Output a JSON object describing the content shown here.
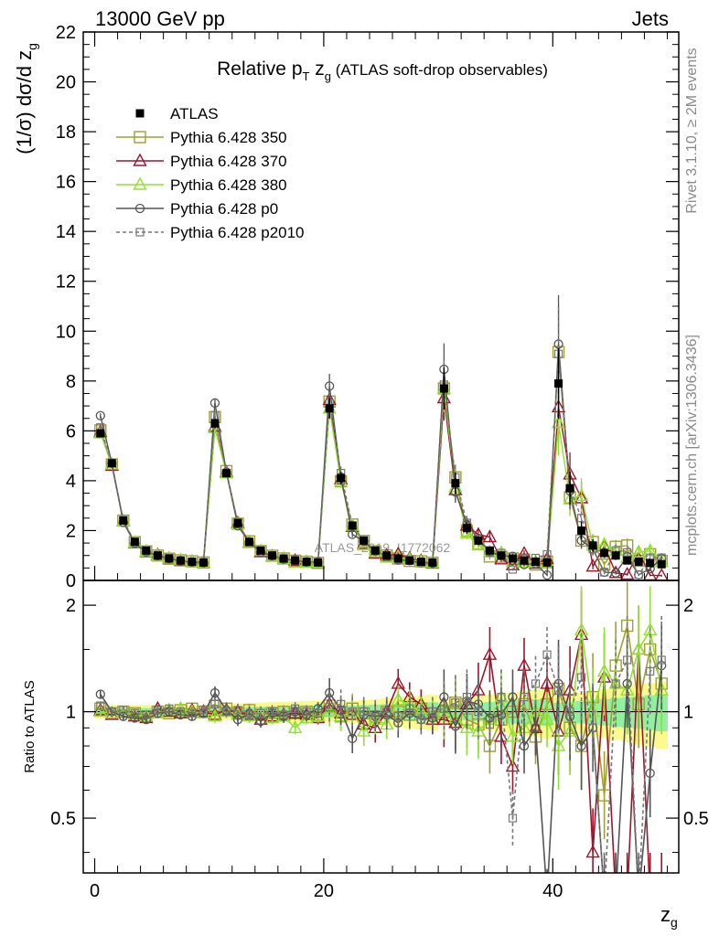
{
  "header": {
    "left": "13000 GeV pp",
    "right": "Jets"
  },
  "side_labels": {
    "rivet": "Rivet 3.1.10, ≥ 2M events",
    "mcplots": "mcplots.cern.ch [arXiv:1306.3436]"
  },
  "watermark": "ATLAS_2019_I1772062",
  "chart_data": {
    "type": "line",
    "title": {
      "prefix": "Relative p",
      "sub": "T",
      "mid": " z",
      "sub2": "g",
      "suffix": " (ATLAS soft-drop observables)"
    },
    "ylabel": {
      "main": "(1/σ) dσ/d z",
      "sub": "g"
    },
    "xlabel": {
      "main": "z",
      "sub": "g"
    },
    "ratio_ylabel": "Ratio to ATLAS",
    "xlim": [
      -1,
      51
    ],
    "ylim": [
      0,
      22
    ],
    "ratio_ylim": [
      0.35,
      2.35
    ],
    "ratio_log": true,
    "xticks": [
      "0",
      "20",
      "40"
    ],
    "xtick_values": [
      0,
      20,
      40
    ],
    "yticks": [
      "0",
      "2",
      "4",
      "6",
      "8",
      "10",
      "12",
      "14",
      "16",
      "18",
      "20",
      "22"
    ],
    "ratio_ticks": [
      "0.5",
      "1",
      "2"
    ],
    "ratio_tick_values": [
      0.5,
      1,
      2
    ],
    "legend_position": "top-left",
    "colors": {
      "atlas": "#000000",
      "p350": "#a0a033",
      "p370": "#a0142a",
      "p380": "#90e030",
      "p0": "#555555",
      "p2010": "#777777",
      "band_stat": "#90f0a0",
      "band_syst": "#fafa90"
    },
    "x": [
      0.5,
      1.5,
      2.5,
      3.5,
      4.5,
      5.5,
      6.5,
      7.5,
      8.5,
      9.5,
      10.5,
      11.5,
      12.5,
      13.5,
      14.5,
      15.5,
      16.5,
      17.5,
      18.5,
      19.5,
      20.5,
      21.5,
      22.5,
      23.5,
      24.5,
      25.5,
      26.5,
      27.5,
      28.5,
      29.5,
      30.5,
      31.5,
      32.5,
      33.5,
      34.5,
      35.5,
      36.5,
      37.5,
      38.5,
      39.5,
      40.5,
      41.5,
      42.5,
      43.5,
      44.5,
      45.5,
      46.5,
      47.5,
      48.5,
      49.5
    ],
    "atlas": [
      5.9,
      4.7,
      2.4,
      1.55,
      1.2,
      1.0,
      0.88,
      0.8,
      0.75,
      0.72,
      6.3,
      4.3,
      2.3,
      1.55,
      1.2,
      1.0,
      0.88,
      0.8,
      0.75,
      0.72,
      6.9,
      4.1,
      2.2,
      1.6,
      1.2,
      1.0,
      0.88,
      0.8,
      0.75,
      0.72,
      7.7,
      3.9,
      2.1,
      1.6,
      1.2,
      1.0,
      0.88,
      0.8,
      0.75,
      0.72,
      7.9,
      3.7,
      2.0,
      1.4,
      1.1,
      1.0,
      0.8,
      0.75,
      0.7,
      0.65
    ],
    "series": [
      {
        "name": "Pythia 6.428 350",
        "key": "p350",
        "marker": "square",
        "ratio": [
          1.02,
          0.99,
          1.0,
          0.99,
          0.97,
          1.0,
          0.99,
          1.01,
          1.02,
          1.0,
          1.04,
          1.02,
          0.99,
          1.01,
          0.98,
          0.99,
          1.0,
          0.99,
          1.0,
          0.98,
          1.04,
          0.97,
          1.02,
          0.99,
          0.97,
          1.0,
          1.0,
          0.98,
          1.02,
          0.99,
          1.0,
          1.06,
          0.95,
          0.92,
          0.8,
          0.95,
          1.0,
          1.05,
          0.85,
          1.05,
          1.16,
          0.9,
          0.8,
          1.1,
          0.58,
          1.35,
          1.75,
          1.05,
          1.5,
          1.2
        ]
      },
      {
        "name": "Pythia 6.428 370",
        "key": "p370",
        "marker": "triangle",
        "ratio": [
          1.01,
          0.98,
          0.99,
          0.97,
          0.96,
          1.02,
          1.0,
          0.99,
          1.01,
          1.0,
          0.98,
          1.01,
          1.0,
          0.98,
          0.95,
          0.97,
          0.98,
          0.99,
          0.98,
          0.96,
          1.05,
          0.99,
          0.98,
          0.92,
          0.9,
          1.0,
          1.2,
          1.1,
          1.05,
          0.95,
          0.95,
          0.93,
          1.05,
          1.15,
          1.45,
          0.85,
          0.7,
          1.35,
          0.9,
          1.2,
          0.88,
          1.15,
          1.65,
          0.4,
          1.25,
          0.3,
          0.3,
          1.5,
          0.3,
          0.3
        ]
      },
      {
        "name": "Pythia 6.428 380",
        "key": "p380",
        "marker": "triangle",
        "ratio": [
          1.0,
          0.99,
          0.99,
          0.98,
          0.97,
          0.99,
          1.01,
          1.02,
          1.0,
          0.99,
          0.97,
          1.0,
          0.98,
          0.97,
          0.99,
          0.96,
          0.97,
          0.9,
          0.96,
          0.97,
          1.0,
          0.97,
          1.0,
          0.88,
          0.95,
          0.92,
          1.08,
          1.05,
          1.0,
          0.98,
          1.0,
          0.96,
          0.9,
          0.88,
          0.95,
          1.1,
          0.85,
          0.9,
          1.0,
          0.95,
          0.8,
          0.88,
          1.7,
          1.0,
          1.3,
          1.2,
          1.15,
          1.5,
          1.7,
          1.15
        ]
      },
      {
        "name": "Pythia 6.428 p0",
        "key": "p0",
        "marker": "circle",
        "ratio": [
          1.12,
          1.0,
          0.97,
          0.96,
          0.95,
          0.99,
          1.0,
          0.98,
          0.97,
          0.99,
          1.13,
          1.01,
          0.95,
          0.99,
          0.94,
          0.99,
          0.97,
          1.0,
          0.98,
          1.02,
          1.13,
          1.01,
          0.84,
          0.98,
          0.97,
          0.98,
          0.93,
          0.99,
          0.95,
          0.96,
          1.1,
          0.91,
          1.07,
          1.05,
          0.96,
          0.98,
          1.1,
          0.8,
          0.9,
          0.3,
          1.2,
          0.97,
          0.8,
          0.9,
          0.3,
          0.3,
          1.2,
          0.3,
          0.67,
          1.35
        ]
      },
      {
        "name": "Pythia 6.428 p2010",
        "key": "p2010",
        "marker": "square-open-dashed",
        "ratio": [
          1.04,
          1.0,
          1.01,
          0.99,
          0.98,
          1.01,
          1.02,
          1.0,
          0.99,
          1.01,
          1.05,
          1.0,
          1.01,
          0.98,
          0.99,
          1.0,
          0.98,
          1.02,
          1.0,
          0.99,
          1.03,
          1.05,
          1.0,
          1.0,
          0.98,
          1.0,
          0.97,
          1.02,
          0.95,
          1.0,
          1.02,
          1.06,
          1.1,
          1.0,
          0.92,
          1.1,
          0.5,
          1.1,
          1.2,
          1.45,
          1.15,
          1.0,
          1.25,
          0.9,
          0.3,
          1.2,
          1.4,
          0.3,
          1.3,
          1.4
        ]
      }
    ]
  }
}
